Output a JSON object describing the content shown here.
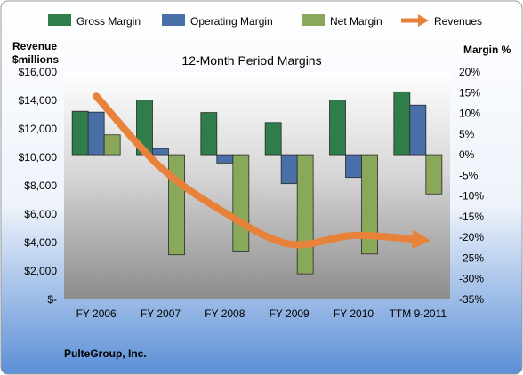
{
  "chart_data": {
    "type": "bar",
    "title": "12-Month Period Margins",
    "left_axis": {
      "label_line1": "Revenue",
      "label_line2": "$millions",
      "ylim": [
        0,
        16000
      ],
      "ticks": [
        0,
        2000,
        4000,
        6000,
        8000,
        10000,
        12000,
        14000,
        16000
      ],
      "tick_labels": [
        "$-",
        "$2,000",
        "$4,000",
        "$6,000",
        "$8,000",
        "$10,000",
        "$12,000",
        "$14,000",
        "$16,000"
      ]
    },
    "right_axis": {
      "label": "Margin %",
      "ylim": [
        -35,
        20
      ],
      "ticks": [
        -35,
        -30,
        -25,
        -20,
        -15,
        -10,
        -5,
        0,
        5,
        10,
        15,
        20
      ],
      "tick_labels": [
        "-35%",
        "-30%",
        "-25%",
        "-20%",
        "-15%",
        "-10%",
        "-5%",
        "0%",
        "5%",
        "10%",
        "15%",
        "20%"
      ]
    },
    "categories": [
      "FY 2006",
      "FY 2007",
      "FY 2008",
      "FY 2009",
      "FY 2010",
      "TTM 9-2011"
    ],
    "series": [
      {
        "name": "Gross Margin",
        "axis": "right",
        "kind": "bar",
        "color": "#2e7d4a",
        "values": [
          10.5,
          13.2,
          10.2,
          7.8,
          13.2,
          15.2
        ]
      },
      {
        "name": "Operating Margin",
        "axis": "right",
        "kind": "bar",
        "color": "#4a6ea8",
        "values": [
          10.3,
          1.5,
          -2.0,
          -7.0,
          -5.5,
          12.0
        ]
      },
      {
        "name": "Net Margin",
        "axis": "right",
        "kind": "bar",
        "color": "#8aa85a",
        "values": [
          4.8,
          -24.2,
          -23.5,
          -28.8,
          -24.0,
          -9.5
        ]
      },
      {
        "name": "Revenues",
        "axis": "left",
        "kind": "line",
        "color": "#e8823a",
        "values": [
          14300,
          9300,
          6100,
          3900,
          4500,
          4200
        ]
      }
    ],
    "grid": false,
    "legend_position": "top"
  },
  "footer": {
    "company": "PulteGroup, Inc."
  }
}
